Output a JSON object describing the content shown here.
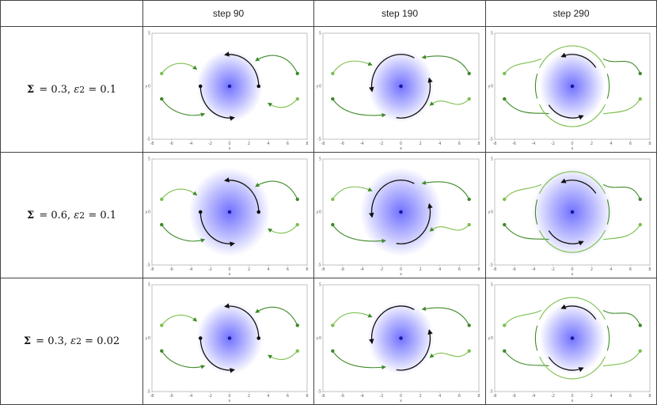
{
  "columns": [
    "step 90",
    "step 190",
    "step 290"
  ],
  "rows": [
    {
      "sigma_label": "Σ",
      "sigma": "= 0.3,",
      "eps_label": "ε",
      "eps_sub": "2",
      "eps": "= 0.1"
    },
    {
      "sigma_label": "Σ",
      "sigma": "= 0.6,",
      "eps_label": "ε",
      "eps_sub": "2",
      "eps": "= 0.1"
    },
    {
      "sigma_label": "Σ",
      "sigma": "= 0.3,",
      "eps_label": "ε",
      "eps_sub": "2",
      "eps": "= 0.02"
    }
  ],
  "axis": {
    "xlabel": "x",
    "ylabel": "y",
    "xticks": [
      "-8",
      "-6",
      "-4",
      "-2",
      "0",
      "2",
      "4",
      "6",
      "8"
    ],
    "yticks": [
      "5",
      "0",
      "-5"
    ],
    "xlim": [
      -8,
      8
    ],
    "ylim": [
      -5,
      5
    ]
  },
  "colors": {
    "trajectory_dark": "#3f8a2a",
    "trajectory_light": "#7cbf4e",
    "arc": "#111111",
    "center": "#1a1aa0",
    "glow": "#6b6bff"
  }
}
